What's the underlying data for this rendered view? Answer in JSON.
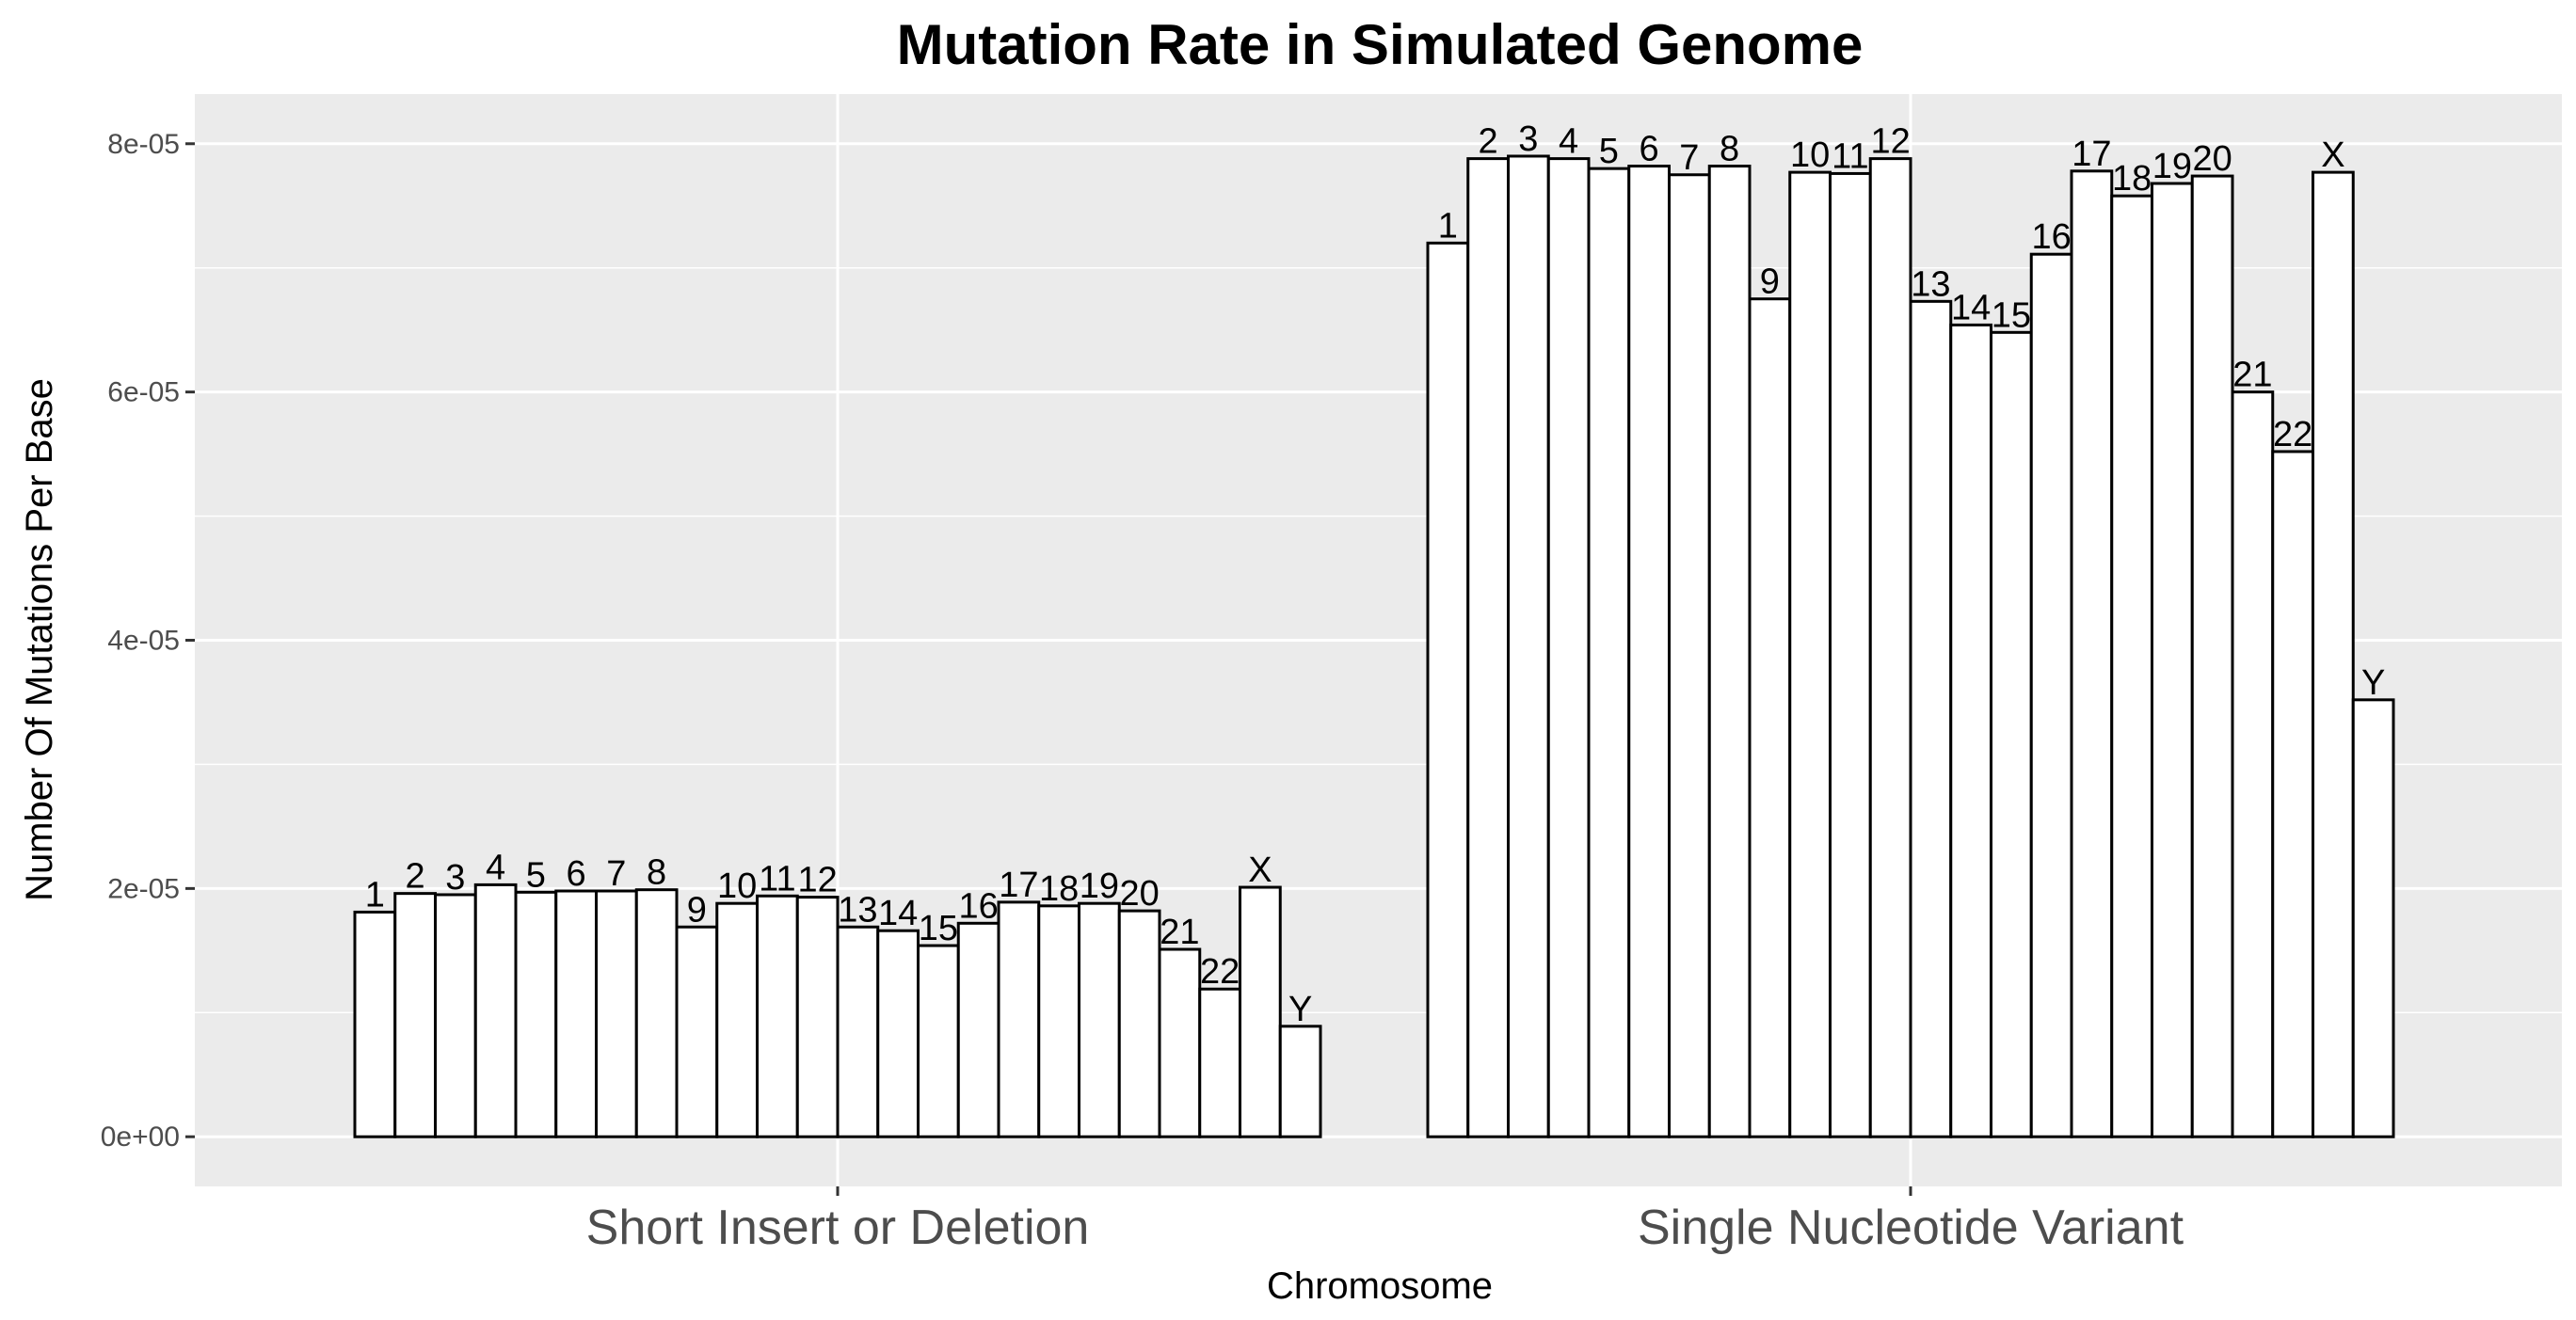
{
  "chart_data": {
    "type": "bar",
    "title": "Mutation Rate in Simulated Genome",
    "xlabel": "Chromosome",
    "ylabel": "Number Of Mutations Per Base",
    "ylim": [
      -4e-06,
      8.4e-05
    ],
    "yticks": [
      0,
      2e-05,
      4e-05,
      6e-05,
      8e-05
    ],
    "ytick_labels": [
      "0e+00",
      "2e-05",
      "4e-05",
      "6e-05",
      "8e-05"
    ],
    "grid": true,
    "legend": "none",
    "categories": [
      "Short Insert or Deletion",
      "Single Nucleotide Variant"
    ],
    "bar_labels": [
      "1",
      "2",
      "3",
      "4",
      "5",
      "6",
      "7",
      "8",
      "9",
      "10",
      "11",
      "12",
      "13",
      "14",
      "15",
      "16",
      "17",
      "18",
      "19",
      "20",
      "21",
      "22",
      "X",
      "Y"
    ],
    "groups": [
      {
        "category": "Short Insert or Deletion",
        "values": [
          1.81e-05,
          1.96e-05,
          1.95e-05,
          2.03e-05,
          1.97e-05,
          1.98e-05,
          1.98e-05,
          1.99e-05,
          1.69e-05,
          1.88e-05,
          1.94e-05,
          1.93e-05,
          1.69e-05,
          1.66e-05,
          1.54e-05,
          1.72e-05,
          1.89e-05,
          1.86e-05,
          1.88e-05,
          1.82e-05,
          1.51e-05,
          1.19e-05,
          2.01e-05,
          8.9e-06
        ]
      },
      {
        "category": "Single Nucleotide Variant",
        "values": [
          7.2e-05,
          7.88e-05,
          7.9e-05,
          7.88e-05,
          7.8e-05,
          7.82e-05,
          7.75e-05,
          7.82e-05,
          6.75e-05,
          7.77e-05,
          7.76e-05,
          7.88e-05,
          6.73e-05,
          6.54e-05,
          6.48e-05,
          7.11e-05,
          7.78e-05,
          7.58e-05,
          7.68e-05,
          7.74e-05,
          6e-05,
          5.52e-05,
          7.77e-05,
          3.52e-05
        ]
      }
    ]
  }
}
